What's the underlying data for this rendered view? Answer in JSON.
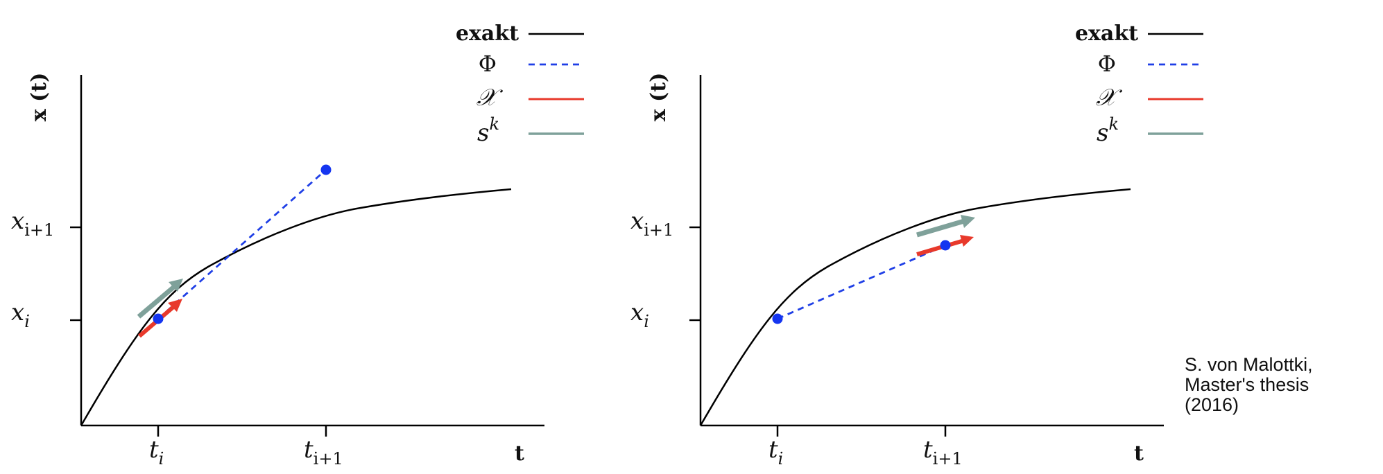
{
  "legend": {
    "exact": "exakt",
    "phi": "Φ",
    "chi": "𝒳",
    "sk_base": "s",
    "sk_sup": "k"
  },
  "axes": {
    "y_label": "x (t)",
    "x_label": "t",
    "y_tick_i_base": "x",
    "y_tick_i_sub": "i",
    "y_tick_ip1_base": "x",
    "y_tick_ip1_sub": "i+1",
    "x_tick_i_base": "t",
    "x_tick_i_sub": "i",
    "x_tick_ip1_base": "t",
    "x_tick_ip1_sub": "i+1"
  },
  "colors": {
    "exact": "#000000",
    "phi": "#1f3fe6",
    "chi": "#e8392b",
    "sk": "#7fa19a",
    "point": "#1535f0"
  },
  "credit": {
    "line1": "S. von Malottki,",
    "line2": "Master's thesis",
    "line3": "(2016)"
  }
}
